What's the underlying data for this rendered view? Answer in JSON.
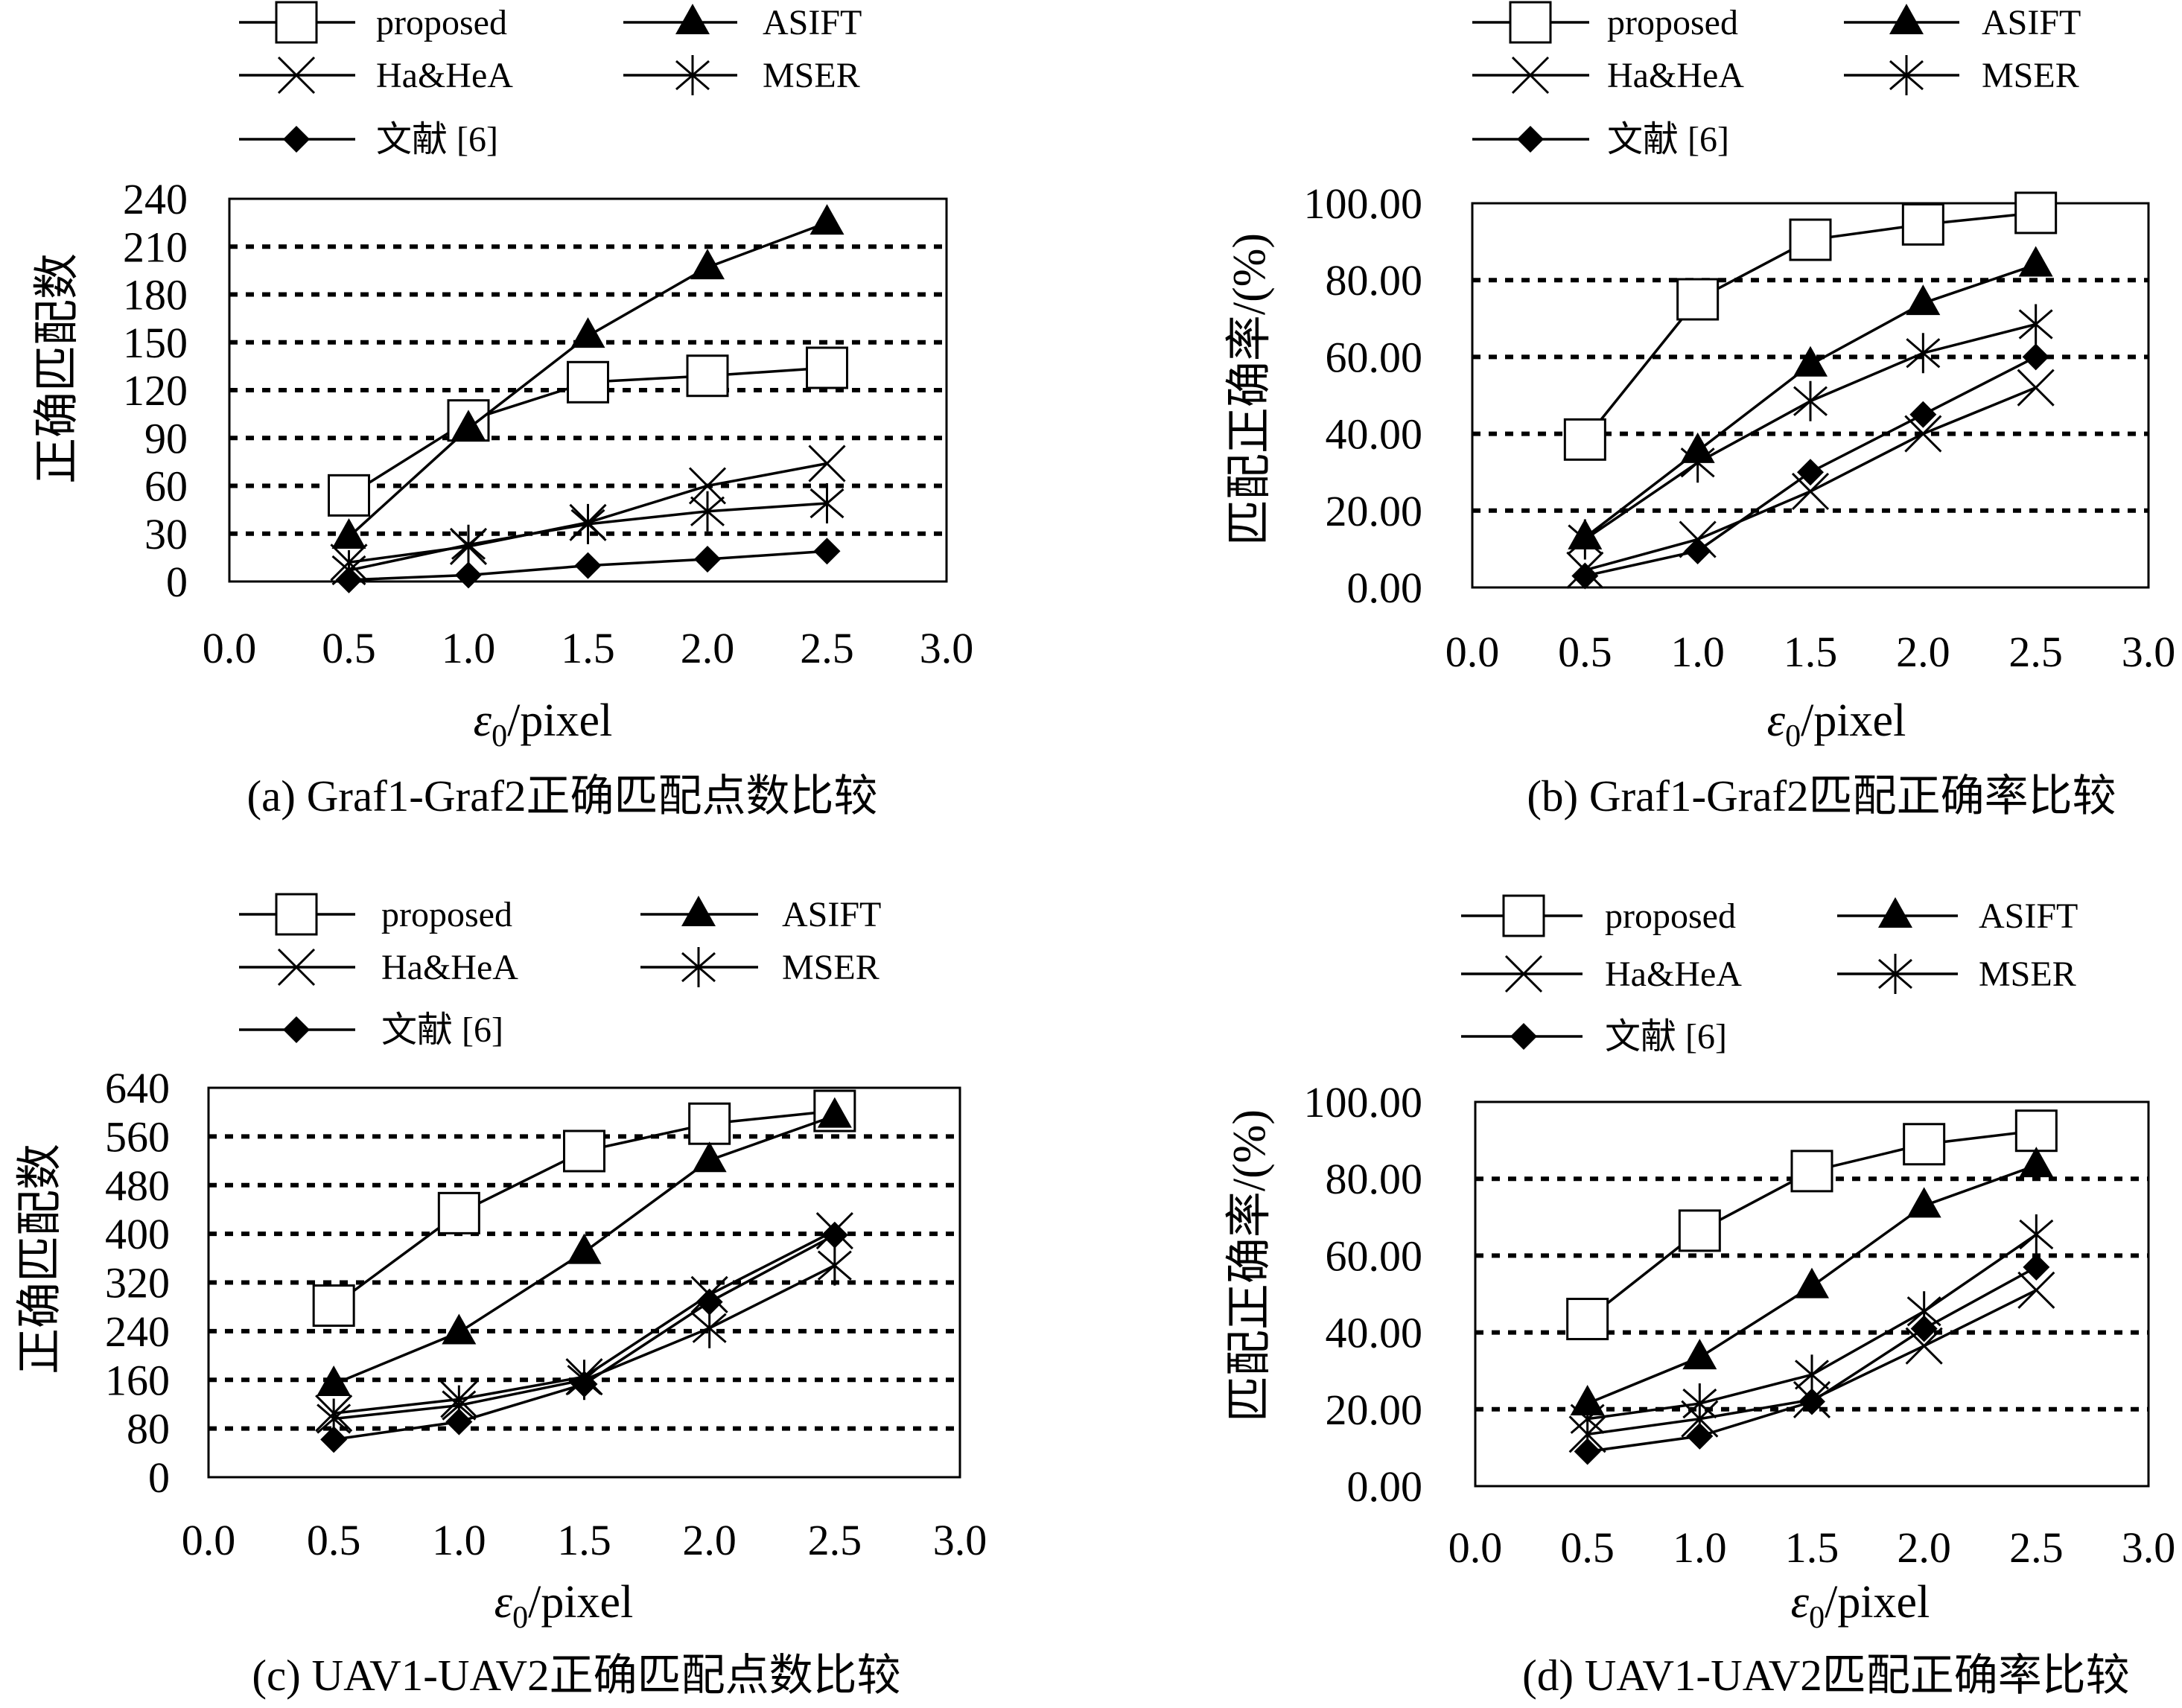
{
  "figure": {
    "background": "#ffffff",
    "ink": "#000000"
  },
  "chart_data": [
    {
      "type": "line",
      "caption": "(a) Graf1-Graf2正确匹配点数比较",
      "ylabel": "正确匹配数",
      "xlabel": {
        "symbol": "ε",
        "subscript": "0",
        "text": "/pixel"
      },
      "xlim": [
        0,
        3
      ],
      "ylim": [
        0,
        240
      ],
      "x_ticks": [
        "0.0",
        "0.5",
        "1.0",
        "1.5",
        "2.0",
        "2.5",
        "3.0"
      ],
      "y_ticks": [
        "0",
        "30",
        "60",
        "90",
        "120",
        "150",
        "180",
        "210",
        "240"
      ],
      "grid": "dashed horizontal",
      "legend_position": "top",
      "x": [
        0.5,
        1.0,
        1.5,
        2.0,
        2.5
      ],
      "series": [
        {
          "name": "proposed",
          "marker": "open-square",
          "values": [
            54,
            101,
            125,
            129,
            134
          ]
        },
        {
          "name": "ASIFT",
          "marker": "filled-triangle",
          "values": [
            28,
            96,
            154,
            197,
            225
          ]
        },
        {
          "name": "Ha&HeA",
          "marker": "x-cross",
          "values": [
            12,
            22,
            37,
            60,
            74
          ]
        },
        {
          "name": "MSER",
          "marker": "asterisk",
          "values": [
            7,
            23,
            36,
            44,
            49
          ]
        },
        {
          "name": "文献 [6]",
          "marker": "filled-diamond",
          "values": [
            1,
            4,
            10,
            14,
            19
          ]
        }
      ]
    },
    {
      "type": "line",
      "caption": "(b) Graf1-Graf2匹配正确率比较",
      "ylabel": "匹配正确率/(%)",
      "xlabel": {
        "symbol": "ε",
        "subscript": "0",
        "text": "/pixel"
      },
      "xlim": [
        0,
        3
      ],
      "ylim": [
        0,
        100
      ],
      "x_ticks": [
        "0.0",
        "0.5",
        "1.0",
        "1.5",
        "2.0",
        "2.5",
        "3.0"
      ],
      "y_ticks": [
        "0.00",
        "20.00",
        "40.00",
        "60.00",
        "80.00",
        "100.00"
      ],
      "grid": "dashed horizontal",
      "legend_position": "top",
      "x": [
        0.5,
        1.0,
        1.5,
        2.0,
        2.5
      ],
      "series": [
        {
          "name": "proposed",
          "marker": "open-square",
          "values": [
            38.5,
            75.0,
            90.5,
            94.5,
            97.5
          ]
        },
        {
          "name": "ASIFT",
          "marker": "filled-triangle",
          "values": [
            13.0,
            35.5,
            58.0,
            74.0,
            84.0
          ]
        },
        {
          "name": "Ha&HeA",
          "marker": "x-cross",
          "values": [
            4.5,
            12.5,
            25.0,
            40.0,
            52.0
          ]
        },
        {
          "name": "MSER",
          "marker": "asterisk",
          "values": [
            12.5,
            32.5,
            48.5,
            61.0,
            68.5
          ]
        },
        {
          "name": "文献 [6]",
          "marker": "filled-diamond",
          "values": [
            3.0,
            9.5,
            30.0,
            45.0,
            60.0
          ]
        }
      ]
    },
    {
      "type": "line",
      "caption": "(c) UAV1-UAV2正确匹配点数比较",
      "ylabel": "正确匹配数",
      "xlabel": {
        "symbol": "ε",
        "subscript": "0",
        "text": "/pixel"
      },
      "xlim": [
        0,
        3
      ],
      "ylim": [
        0,
        640
      ],
      "x_ticks": [
        "0.0",
        "0.5",
        "1.0",
        "1.5",
        "2.0",
        "2.5",
        "3.0"
      ],
      "y_ticks": [
        "0",
        "80",
        "160",
        "240",
        "320",
        "400",
        "480",
        "560",
        "640"
      ],
      "grid": "dashed horizontal",
      "legend_position": "top",
      "x": [
        0.5,
        1.0,
        1.5,
        2.0,
        2.5
      ],
      "series": [
        {
          "name": "proposed",
          "marker": "open-square",
          "values": [
            282,
            434,
            536,
            581,
            602
          ]
        },
        {
          "name": "ASIFT",
          "marker": "filled-triangle",
          "values": [
            153,
            238,
            370,
            521,
            594
          ]
        },
        {
          "name": "Ha&HeA",
          "marker": "x-cross",
          "values": [
            105,
            128,
            165,
            300,
            405
          ]
        },
        {
          "name": "MSER",
          "marker": "asterisk",
          "values": [
            96,
            118,
            160,
            245,
            348
          ]
        },
        {
          "name": "文献 [6]",
          "marker": "filled-diamond",
          "values": [
            62,
            91,
            153,
            288,
            398
          ]
        }
      ]
    },
    {
      "type": "line",
      "caption": "(d) UAV1-UAV2匹配正确率比较",
      "ylabel": "匹配正确率/(%)",
      "xlabel": {
        "symbol": "ε",
        "subscript": "0",
        "text": "/pixel"
      },
      "xlim": [
        0,
        3
      ],
      "ylim": [
        0,
        100
      ],
      "x_ticks": [
        "0.0",
        "0.5",
        "1.0",
        "1.5",
        "2.0",
        "2.5",
        "3.0"
      ],
      "y_ticks": [
        "0.00",
        "20.00",
        "40.00",
        "60.00",
        "80.00",
        "100.00"
      ],
      "grid": "dashed horizontal",
      "legend_position": "top",
      "x": [
        0.5,
        1.0,
        1.5,
        2.0,
        2.5
      ],
      "series": [
        {
          "name": "proposed",
          "marker": "open-square",
          "values": [
            43.5,
            66.5,
            82.0,
            89.0,
            92.5
          ]
        },
        {
          "name": "ASIFT",
          "marker": "filled-triangle",
          "values": [
            21.5,
            33.5,
            52.0,
            73.0,
            83.5
          ]
        },
        {
          "name": "Ha&HeA",
          "marker": "x-cross",
          "values": [
            13.5,
            17.5,
            22.5,
            36.5,
            51.0
          ]
        },
        {
          "name": "MSER",
          "marker": "asterisk",
          "values": [
            17.5,
            21.5,
            29.0,
            45.5,
            65.5
          ]
        },
        {
          "name": "文献 [6]",
          "marker": "filled-diamond",
          "values": [
            9.0,
            13.0,
            22.0,
            41.0,
            57.0
          ]
        }
      ]
    }
  ]
}
